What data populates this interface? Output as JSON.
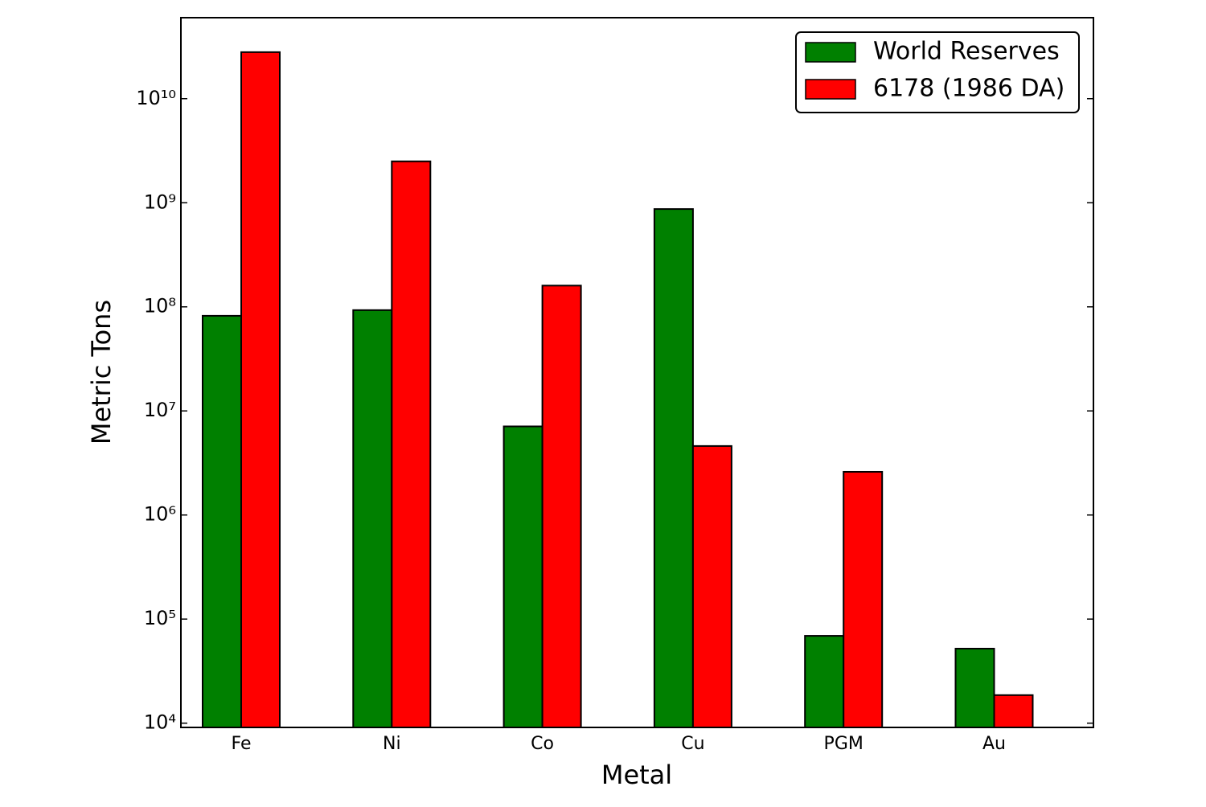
{
  "chart_data": {
    "type": "bar",
    "log_scale": true,
    "xlabel": "Metal",
    "ylabel": "Metric Tons",
    "categories": [
      "Fe",
      "Ni",
      "Co",
      "Cu",
      "PGM",
      "Au"
    ],
    "series": [
      {
        "name": "World Reserves",
        "color": "#008000",
        "values": [
          82000000,
          93000000,
          7100000,
          870000000,
          69000,
          52000
        ]
      },
      {
        "name": "6178 (1986 DA)",
        "color": "#ff0000",
        "values": [
          28000000000,
          2500000000,
          160000000,
          4600000,
          2600000,
          18600
        ]
      }
    ],
    "ylim": [
      9100,
      60000000000
    ],
    "yticks": [
      {
        "value": 10000,
        "label": "10⁴"
      },
      {
        "value": 100000,
        "label": "10⁵"
      },
      {
        "value": 1000000,
        "label": "10⁶"
      },
      {
        "value": 10000000,
        "label": "10⁷"
      },
      {
        "value": 100000000,
        "label": "10⁸"
      },
      {
        "value": 1000000000,
        "label": "10⁹"
      },
      {
        "value": 10000000000,
        "label": "10¹⁰"
      }
    ],
    "legend": "upper right"
  }
}
